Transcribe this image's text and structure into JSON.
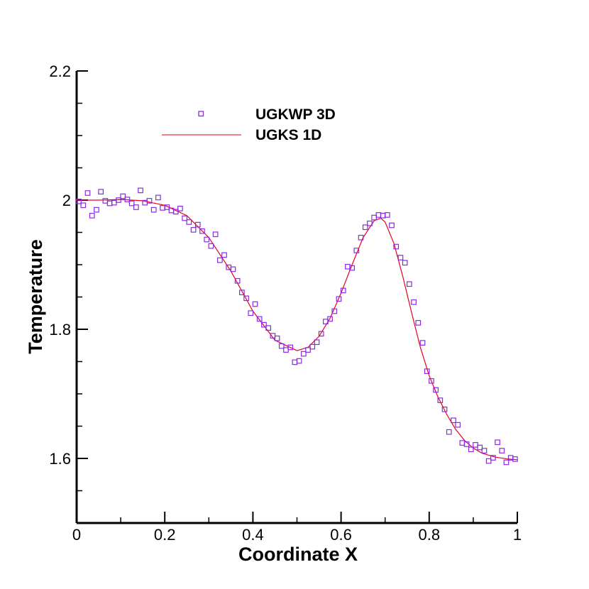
{
  "chart_data": {
    "type": "line",
    "xlabel": "Coordinate X",
    "ylabel": "Temperature",
    "xlim": [
      0,
      1
    ],
    "ylim": [
      1.5,
      2.2
    ],
    "x_ticks": [
      0,
      0.2,
      0.4,
      0.6,
      0.8,
      1
    ],
    "x_tick_labels": [
      "0",
      "0.2",
      "0.4",
      "0.6",
      "0.8",
      "1"
    ],
    "x_minor_ticks": [
      0.1,
      0.3,
      0.5,
      0.7,
      0.9
    ],
    "y_ticks": [
      1.6,
      1.8,
      2.0,
      2.2
    ],
    "y_tick_labels": [
      "1.6",
      "1.8",
      "2",
      "2.2"
    ],
    "y_minor_ticks": [
      1.5,
      1.55,
      1.65,
      1.7,
      1.75,
      1.85,
      1.9,
      1.95,
      2.05,
      2.1,
      2.15
    ],
    "grid": false,
    "legend_position": "top-center",
    "series": [
      {
        "name": "UGKWP 3D",
        "kind": "scatter",
        "marker": "square-open",
        "color": "#8a2be2",
        "x": [
          0.005,
          0.015,
          0.025,
          0.035,
          0.045,
          0.055,
          0.065,
          0.075,
          0.085,
          0.095,
          0.105,
          0.115,
          0.125,
          0.135,
          0.145,
          0.155,
          0.165,
          0.175,
          0.185,
          0.195,
          0.205,
          0.215,
          0.225,
          0.235,
          0.245,
          0.255,
          0.265,
          0.275,
          0.285,
          0.295,
          0.305,
          0.315,
          0.325,
          0.335,
          0.345,
          0.355,
          0.365,
          0.375,
          0.385,
          0.395,
          0.405,
          0.415,
          0.425,
          0.435,
          0.445,
          0.455,
          0.465,
          0.475,
          0.485,
          0.495,
          0.505,
          0.515,
          0.525,
          0.535,
          0.545,
          0.555,
          0.565,
          0.575,
          0.585,
          0.595,
          0.605,
          0.615,
          0.625,
          0.635,
          0.645,
          0.655,
          0.665,
          0.675,
          0.685,
          0.695,
          0.705,
          0.715,
          0.725,
          0.735,
          0.745,
          0.755,
          0.765,
          0.775,
          0.785,
          0.795,
          0.805,
          0.815,
          0.825,
          0.835,
          0.845,
          0.855,
          0.865,
          0.875,
          0.885,
          0.895,
          0.905,
          0.915,
          0.925,
          0.935,
          0.945,
          0.955,
          0.965,
          0.975,
          0.985,
          0.995
        ],
        "y": [
          1.998,
          1.992,
          2.011,
          1.976,
          1.985,
          2.013,
          1.999,
          1.995,
          1.996,
          2.0,
          2.006,
          2.001,
          1.995,
          1.989,
          2.015,
          1.996,
          1.999,
          1.985,
          2.004,
          1.988,
          1.989,
          1.984,
          1.982,
          1.987,
          1.972,
          1.966,
          1.954,
          1.962,
          1.952,
          1.939,
          1.929,
          1.947,
          1.907,
          1.915,
          1.896,
          1.893,
          1.875,
          1.857,
          1.848,
          1.825,
          1.839,
          1.816,
          1.807,
          1.802,
          1.79,
          1.786,
          1.774,
          1.768,
          1.772,
          1.749,
          1.751,
          1.762,
          1.768,
          1.773,
          1.78,
          1.793,
          1.812,
          1.816,
          1.828,
          1.847,
          1.86,
          1.897,
          1.895,
          1.922,
          1.942,
          1.958,
          1.964,
          1.973,
          1.977,
          1.976,
          1.977,
          1.961,
          1.928,
          1.911,
          1.903,
          1.87,
          1.842,
          1.81,
          1.779,
          1.735,
          1.72,
          1.706,
          1.69,
          1.676,
          1.641,
          1.659,
          1.652,
          1.624,
          1.622,
          1.614,
          1.621,
          1.617,
          1.612,
          1.596,
          1.601,
          1.625,
          1.612,
          1.594,
          1.601,
          1.599
        ]
      },
      {
        "name": "UGKS 1D",
        "kind": "line",
        "color": "#e8001c",
        "x": [
          0.0,
          0.05,
          0.1,
          0.15,
          0.2,
          0.25,
          0.3,
          0.35,
          0.4,
          0.45,
          0.5,
          0.525,
          0.55,
          0.575,
          0.6,
          0.625,
          0.65,
          0.675,
          0.69,
          0.7,
          0.72,
          0.74,
          0.76,
          0.78,
          0.8,
          0.82,
          0.84,
          0.86,
          0.88,
          0.9,
          0.92,
          0.95,
          0.98,
          1.0
        ],
        "y": [
          2.0,
          2.0,
          2.001,
          1.999,
          1.992,
          1.976,
          1.942,
          1.89,
          1.828,
          1.783,
          1.767,
          1.772,
          1.789,
          1.817,
          1.856,
          1.9,
          1.942,
          1.968,
          1.972,
          1.966,
          1.933,
          1.882,
          1.826,
          1.772,
          1.728,
          1.695,
          1.668,
          1.645,
          1.628,
          1.616,
          1.608,
          1.602,
          1.599,
          1.598
        ]
      }
    ]
  }
}
